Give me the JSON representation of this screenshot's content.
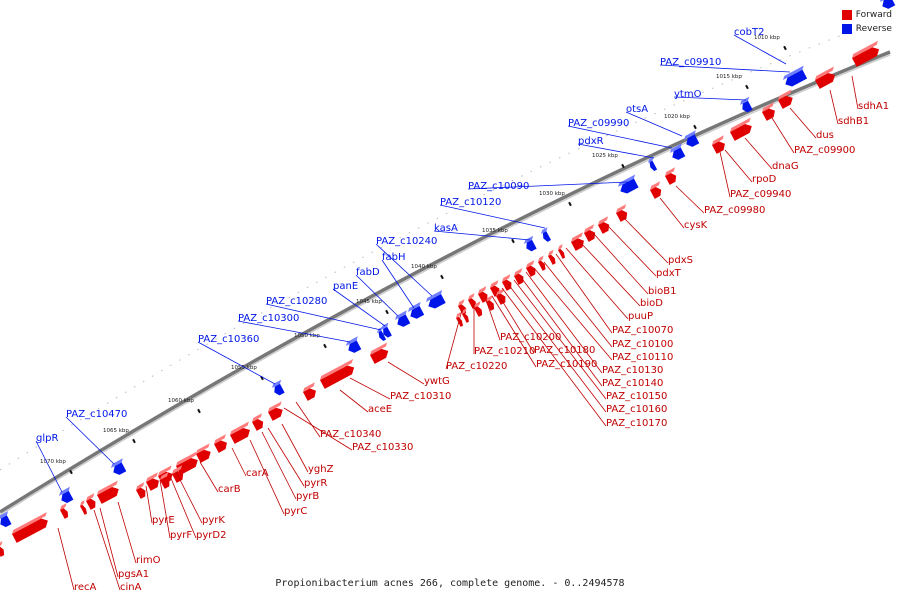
{
  "legend": {
    "forward_label": "Forward",
    "reverse_label": "Reverse",
    "forward_color": "#e00000",
    "reverse_color": "#0016e8"
  },
  "caption": "Propionibacterium acnes 266, complete genome. - 0..2494578",
  "kbp_ticks": [
    "1010 kbp",
    "1015 kbp",
    "1020 kbp",
    "1025 kbp",
    "1030 kbp",
    "1035 kbp",
    "1040 kbp",
    "1045 kbp",
    "1050 kbp",
    "1055 kbp",
    "1060 kbp",
    "1065 kbp",
    "1070 kbp"
  ],
  "reverse_genes": [
    "cobT2",
    "PAZ_c09910",
    "ytmO",
    "otsA",
    "PAZ_c09990",
    "pdxR",
    "PAZ_c10090",
    "PAZ_c10120",
    "kasA",
    "PAZ_c10240",
    "fabH",
    "fabD",
    "panE",
    "PAZ_c10280",
    "PAZ_c10300",
    "PAZ_c10360",
    "PAZ_c10470",
    "glpR"
  ],
  "forward_genes": [
    "sdhA1",
    "sdhB1",
    "dus",
    "PAZ_c09900",
    "dnaG",
    "rpoD",
    "PAZ_c09940",
    "PAZ_c09980",
    "cysK",
    "pdxS",
    "pdxT",
    "bioB1",
    "bioD",
    "puuP",
    "PAZ_c10070",
    "PAZ_c10100",
    "PAZ_c10110",
    "PAZ_c10130",
    "PAZ_c10140",
    "PAZ_c10150",
    "PAZ_c10160",
    "PAZ_c10170",
    "PAZ_c10180",
    "PAZ_c10190",
    "PAZ_c10200",
    "PAZ_c10210",
    "PAZ_c10220",
    "ywtG",
    "PAZ_c10310",
    "aceE",
    "PAZ_c10340",
    "PAZ_c10330",
    "yghZ",
    "pyrR",
    "pyrB",
    "pyrC",
    "carA",
    "carB",
    "pyrK",
    "pyrD2",
    "pyrF",
    "pyrE",
    "rimO",
    "pgsA1",
    "cinA",
    "recA"
  ]
}
